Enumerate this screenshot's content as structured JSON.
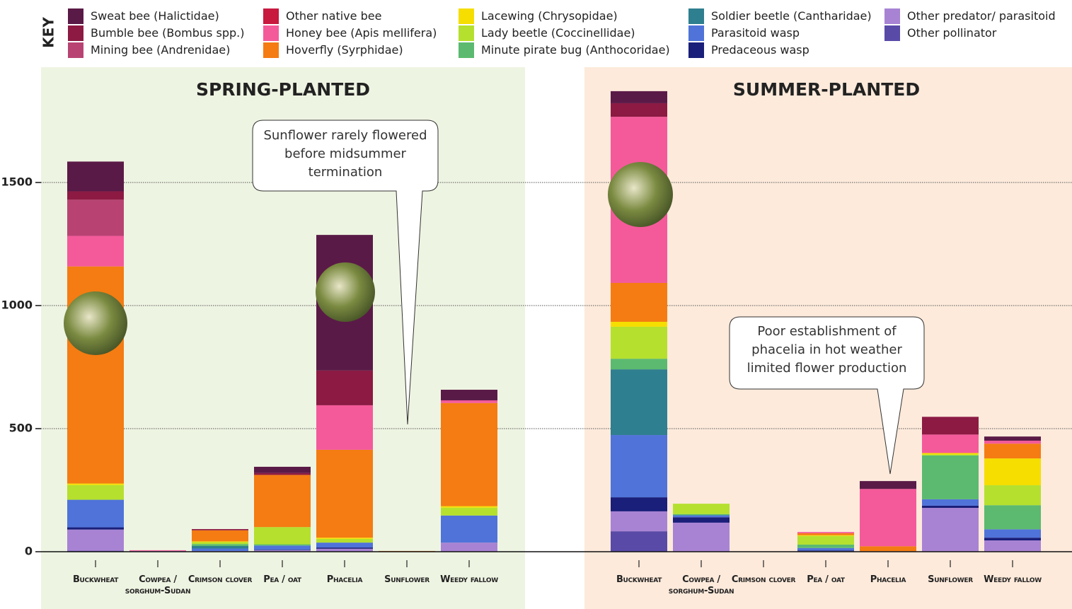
{
  "chart_data": [
    {
      "type": "bar",
      "stacked": true,
      "title": "SPRING-PLANTED",
      "legend_title": "KEY",
      "categories": [
        "Buckwheat",
        "Cowpea / sorghum-Sudan",
        "Crimson clover",
        "Pea / oat",
        "Phacelia",
        "Sunflower",
        "Weedy fallow"
      ],
      "ylim": [
        0,
        2000
      ],
      "yticks": [
        0,
        500,
        1000,
        1500
      ],
      "grid": true,
      "annotation": "Sunflower rarely flowered before midsummer termination",
      "series": [
        {
          "name": "Sweat bee (Halictidae)",
          "color": "#5a1a47",
          "values": [
            121,
            0,
            0,
            25,
            551,
            0,
            43
          ]
        },
        {
          "name": "Bumble bee (Bombus spp.)",
          "color": "#8c1a43",
          "values": [
            34,
            0,
            5,
            8,
            141,
            0,
            0
          ]
        },
        {
          "name": "Mining bee (Andrenidae)",
          "color": "#b84373",
          "values": [
            147,
            0,
            0,
            0,
            0,
            0,
            0
          ]
        },
        {
          "name": "Other native bee",
          "color": "#c8193f",
          "values": [
            0,
            0,
            0,
            0,
            0,
            0,
            0
          ]
        },
        {
          "name": "Honey bee (Apis mellifera)",
          "color": "#f45a9a",
          "values": [
            124,
            3,
            0,
            0,
            181,
            0,
            11
          ]
        },
        {
          "name": "Hoverfly (Syrphidae)",
          "color": "#f47c12",
          "values": [
            882,
            0,
            45,
            212,
            357,
            3,
            419
          ]
        },
        {
          "name": "Lacewing (Chrysopidae)",
          "color": "#f5de00",
          "values": [
            6,
            0,
            3,
            0,
            5,
            0,
            6
          ]
        },
        {
          "name": "Lady beetle (Coccinellidae)",
          "color": "#b5e02e",
          "values": [
            60,
            0,
            8,
            70,
            15,
            0,
            32
          ]
        },
        {
          "name": "Minute pirate bug (Anthocoridae)",
          "color": "#5bba6f",
          "values": [
            0,
            0,
            8,
            5,
            0,
            0,
            0
          ]
        },
        {
          "name": "Soldier beetle (Cantharidae)",
          "color": "#2e7f8f",
          "values": [
            0,
            0,
            10,
            0,
            0,
            0,
            0
          ]
        },
        {
          "name": "Parasitoid wasp",
          "color": "#4f73d9",
          "values": [
            112,
            0,
            10,
            17,
            20,
            0,
            110
          ]
        },
        {
          "name": "Predaceous wasp",
          "color": "#1a1f7a",
          "values": [
            9,
            0,
            0,
            2,
            5,
            0,
            0
          ]
        },
        {
          "name": "Other predator/ parasitoid",
          "color": "#a883d4",
          "values": [
            86,
            3,
            3,
            6,
            12,
            0,
            37
          ]
        },
        {
          "name": "Other pollinator",
          "color": "#5a4aa8",
          "values": [
            4,
            0,
            0,
            0,
            0,
            0,
            0
          ]
        }
      ]
    },
    {
      "type": "bar",
      "stacked": true,
      "title": "SUMMER-PLANTED",
      "categories": [
        "Buckwheat",
        "Cowpea / sorghum-Sudan",
        "Crimson clover",
        "Pea / oat",
        "Phacelia",
        "Sunflower",
        "Weedy fallow"
      ],
      "ylim": [
        0,
        2000
      ],
      "annotation": "Poor establishment of phacelia in hot weather limited flower production",
      "series": [
        {
          "name": "Sweat bee (Halictidae)",
          "color": "#5a1a47",
          "values": [
            49,
            0,
            0,
            0,
            32,
            0,
            17
          ]
        },
        {
          "name": "Bumble bee (Bombus spp.)",
          "color": "#8c1a43",
          "values": [
            55,
            0,
            0,
            0,
            0,
            72,
            0
          ]
        },
        {
          "name": "Mining bee (Andrenidae)",
          "color": "#b84373",
          "values": [
            0,
            0,
            0,
            0,
            0,
            0,
            0
          ]
        },
        {
          "name": "Other native bee",
          "color": "#c8193f",
          "values": [
            0,
            0,
            0,
            0,
            0,
            0,
            0
          ]
        },
        {
          "name": "Honey bee (Apis mellifera)",
          "color": "#f45a9a",
          "values": [
            675,
            0,
            0,
            5,
            233,
            75,
            12
          ]
        },
        {
          "name": "Hoverfly (Syrphidae)",
          "color": "#f47c12",
          "values": [
            158,
            0,
            0,
            8,
            20,
            0,
            60
          ]
        },
        {
          "name": "Lacewing (Chrysopidae)",
          "color": "#f5de00",
          "values": [
            20,
            0,
            0,
            3,
            0,
            6,
            109
          ]
        },
        {
          "name": "Lady beetle (Coccinellidae)",
          "color": "#b5e02e",
          "values": [
            130,
            42,
            0,
            35,
            0,
            4,
            81
          ]
        },
        {
          "name": "Minute pirate bug (Anthocoridae)",
          "color": "#5bba6f",
          "values": [
            43,
            5,
            0,
            14,
            0,
            178,
            98
          ]
        },
        {
          "name": "Soldier beetle (Cantharidae)",
          "color": "#2e7f8f",
          "values": [
            267,
            0,
            0,
            0,
            0,
            0,
            0
          ]
        },
        {
          "name": "Parasitoid wasp",
          "color": "#4f73d9",
          "values": [
            253,
            8,
            0,
            10,
            0,
            26,
            34
          ]
        },
        {
          "name": "Predaceous wasp",
          "color": "#1a1f7a",
          "values": [
            57,
            22,
            0,
            3,
            0,
            9,
            11
          ]
        },
        {
          "name": "Other predator/ parasitoid",
          "color": "#a883d4",
          "values": [
            81,
            118,
            0,
            2,
            2,
            178,
            46
          ]
        },
        {
          "name": "Other pollinator",
          "color": "#5a4aa8",
          "values": [
            83,
            0,
            0,
            0,
            0,
            0,
            0
          ]
        }
      ]
    }
  ]
}
